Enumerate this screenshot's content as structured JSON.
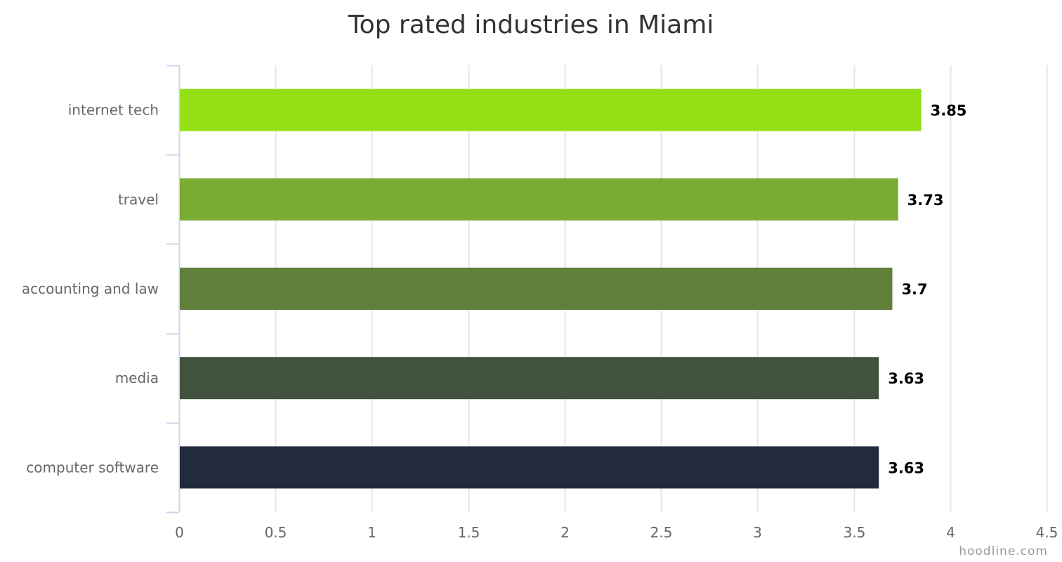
{
  "chart_data": {
    "type": "bar",
    "orientation": "horizontal",
    "title": "Top rated industries in Miami",
    "categories": [
      "internet tech",
      "travel",
      "accounting and law",
      "media",
      "computer software"
    ],
    "values": [
      3.85,
      3.73,
      3.7,
      3.63,
      3.63
    ],
    "value_labels": [
      "3.85",
      "3.73",
      "3.7",
      "3.63",
      "3.63"
    ],
    "bar_colors": [
      "#93e016",
      "#7aab32",
      "#5f7f3a",
      "#41533f",
      "#222b3e"
    ],
    "xlim": [
      0,
      4.5
    ],
    "x_ticks": [
      "0",
      "0.5",
      "1",
      "1.5",
      "2",
      "2.5",
      "3",
      "3.5",
      "4",
      "4.5"
    ],
    "xlabel": "",
    "ylabel": "",
    "grid": true,
    "legend": "none"
  },
  "credit": "hoodline.com"
}
